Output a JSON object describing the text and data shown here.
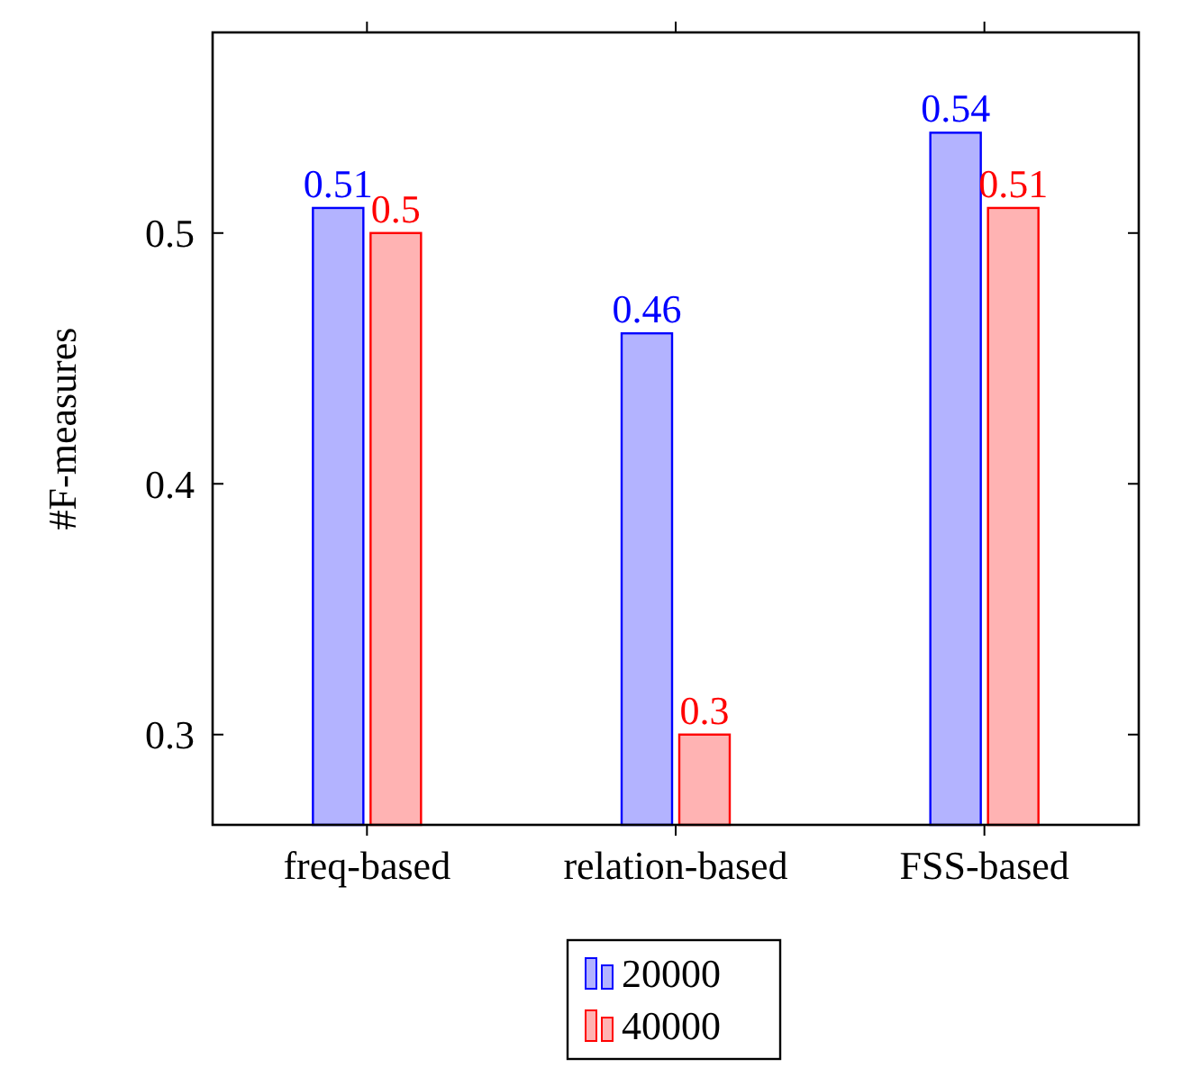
{
  "chart_data": {
    "type": "bar",
    "ylabel": "#F-measures",
    "categories": [
      "freq-based",
      "relation-based",
      "FSS-based"
    ],
    "series": [
      {
        "name": "20000",
        "color": "#b3b3ff",
        "values": [
          0.51,
          0.46,
          0.54
        ]
      },
      {
        "name": "40000",
        "color": "#ffb3b3",
        "values": [
          0.5,
          0.3,
          0.51
        ]
      }
    ],
    "ylim": [
      0.264,
      0.58
    ],
    "yticks": [
      0.3,
      0.4,
      0.5
    ],
    "data_labels": true,
    "grid": false,
    "legend": "bottom"
  }
}
